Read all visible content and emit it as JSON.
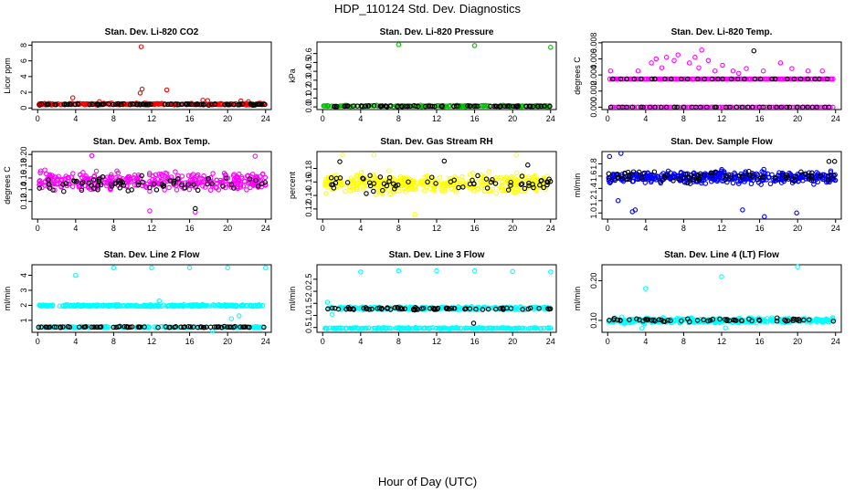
{
  "figure": {
    "title": "HDP_110124  Std. Dev. Diagnostics",
    "xlabel": "Hour of Day (UTC)"
  },
  "chart_data": [
    {
      "type": "scatter",
      "title": "Stan. Dev. Li-820 CO2",
      "ylabel": "Licor ppm",
      "xlim": [
        -0.6,
        24.6
      ],
      "ylim": [
        -0.2,
        8.4
      ],
      "xticks": [
        "0",
        "4",
        "8",
        "12",
        "16",
        "20",
        "24"
      ],
      "yticks": [
        "0",
        "2",
        "4",
        "6",
        "8"
      ],
      "grid": false,
      "series": [
        {
          "color": "#ff0000",
          "band": {
            "center": 0.5,
            "spread": 0.12,
            "n": 260
          },
          "outliers": [
            [
              10.9,
              7.8
            ],
            [
              10.8,
              1.9
            ],
            [
              11.0,
              2.4
            ],
            [
              13.6,
              2.3
            ],
            [
              3.7,
              1.3
            ],
            [
              17.4,
              1.0
            ],
            [
              17.9,
              0.95
            ],
            [
              21.4,
              0.9
            ],
            [
              22.2,
              0.8
            ],
            [
              6.5,
              0.8
            ]
          ]
        },
        {
          "color": "#000000",
          "band": {
            "center": 0.45,
            "spread": 0.1,
            "n": 90
          },
          "outliers": []
        }
      ]
    },
    {
      "type": "scatter",
      "title": "Stan. Dev. Li-820 Pressure",
      "ylabel": "kPa",
      "xlim": [
        -0.6,
        24.6
      ],
      "ylim": [
        -0.03,
        0.73
      ],
      "xticks": [
        "0",
        "4",
        "8",
        "12",
        "16",
        "20",
        "24"
      ],
      "yticks": [
        "0.0",
        "0.1",
        "0.2",
        "0.3",
        "0.4",
        "0.5",
        "0.6"
      ],
      "grid": false,
      "series": [
        {
          "color": "#00c000",
          "band": {
            "center": 0.01,
            "spread": 0.008,
            "n": 200
          },
          "outliers": [
            [
              8.0,
              0.7
            ],
            [
              16.0,
              0.69
            ],
            [
              24.0,
              0.67
            ]
          ]
        },
        {
          "color": "#000000",
          "band": {
            "center": 0.008,
            "spread": 0.006,
            "n": 80
          },
          "outliers": []
        }
      ]
    },
    {
      "type": "scatter",
      "title": "Stan. Dev. Li-820 Temp.",
      "ylabel": "degrees C",
      "xlim": [
        -0.6,
        24.6
      ],
      "ylim": [
        -0.0003,
        0.0081
      ],
      "xticks": [
        "0",
        "4",
        "8",
        "12",
        "16",
        "20",
        "24"
      ],
      "yticks": [
        "0.000",
        "0.002",
        "0.004",
        "0.006",
        "0.008"
      ],
      "grid": false,
      "series": [
        {
          "color": "#ff00ff",
          "levels": [
            0.0,
            0.0035
          ],
          "levelCounts": [
            110,
            170
          ],
          "levelRange": [
            0.2,
            23.8
          ],
          "outliers": [
            [
              0.3,
              0.0045
            ],
            [
              3.2,
              0.0045
            ],
            [
              4.6,
              0.0055
            ],
            [
              5.1,
              0.006
            ],
            [
              6.2,
              0.0062
            ],
            [
              7.0,
              0.0058
            ],
            [
              7.4,
              0.0065
            ],
            [
              8.6,
              0.0055
            ],
            [
              9.2,
              0.0062
            ],
            [
              9.9,
              0.0071
            ],
            [
              10.6,
              0.0058
            ],
            [
              11.3,
              0.0045
            ],
            [
              12.1,
              0.0052
            ],
            [
              13.2,
              0.0045
            ],
            [
              14.6,
              0.0048
            ],
            [
              16.4,
              0.0045
            ],
            [
              18.2,
              0.0055
            ],
            [
              19.4,
              0.0048
            ],
            [
              21.1,
              0.0045
            ],
            [
              22.6,
              0.0045
            ],
            [
              5.7,
              0.0049
            ],
            [
              9.6,
              0.0049
            ],
            [
              13.8,
              0.0042
            ]
          ]
        },
        {
          "color": "#000000",
          "levels": [
            0.0,
            0.0035
          ],
          "levelCounts": [
            40,
            30
          ],
          "levelRange": [
            0.2,
            23.8
          ],
          "outliers": [
            [
              15.4,
              0.007
            ]
          ]
        }
      ]
    },
    {
      "type": "scatter",
      "title": "Stan. Dev. Amb. Box Temp.",
      "ylabel": "degrees C",
      "xlim": [
        -0.6,
        24.6
      ],
      "ylim": [
        0.09,
        0.205
      ],
      "xticks": [
        "0",
        "4",
        "8",
        "12",
        "16",
        "20",
        "24"
      ],
      "yticks": [
        "0.12",
        "0.14",
        "0.16",
        "0.18",
        "0.20"
      ],
      "grid": false,
      "series": [
        {
          "color": "#ff00ff",
          "band": {
            "center": 0.155,
            "spread": 0.018,
            "n": 360
          },
          "outliers": [
            [
              16.6,
              0.102
            ],
            [
              5.7,
              0.198
            ],
            [
              22.9,
              0.197
            ],
            [
              11.8,
              0.104
            ]
          ]
        },
        {
          "color": "#000000",
          "band": {
            "center": 0.15,
            "spread": 0.016,
            "n": 70
          },
          "outliers": [
            [
              16.6,
              0.108
            ]
          ]
        }
      ]
    },
    {
      "type": "scatter",
      "title": "Stan. Dev. Gas Stream RH",
      "ylabel": "percent",
      "xlim": [
        -0.6,
        24.6
      ],
      "ylim": [
        0.105,
        0.205
      ],
      "xticks": [
        "0",
        "4",
        "8",
        "12",
        "16",
        "20",
        "24"
      ],
      "yticks": [
        "0.12",
        "0.14",
        "0.16",
        "0.18"
      ],
      "grid": false,
      "series": [
        {
          "color": "#ffff00",
          "band": {
            "center": 0.158,
            "spread": 0.015,
            "n": 380
          },
          "outliers": [
            [
              9.7,
              0.112
            ],
            [
              2.1,
              0.2
            ],
            [
              5.4,
              0.2
            ],
            [
              20.4,
              0.2
            ]
          ]
        },
        {
          "color": "#000000",
          "band": {
            "center": 0.158,
            "spread": 0.014,
            "n": 65
          },
          "outliers": [
            [
              1.8,
              0.19
            ],
            [
              12.8,
              0.191
            ],
            [
              21.6,
              0.185
            ]
          ]
        }
      ]
    },
    {
      "type": "scatter",
      "title": "Stan. Dev. Sample Flow",
      "ylabel": "ml/min",
      "xlim": [
        -0.6,
        24.6
      ],
      "ylim": [
        0.9,
        2.0
      ],
      "xticks": [
        "0",
        "4",
        "8",
        "12",
        "16",
        "20",
        "24"
      ],
      "yticks": [
        "1.0",
        "1.2",
        "1.4",
        "1.6",
        "1.8"
      ],
      "grid": false,
      "series": [
        {
          "color": "#0000ff",
          "band": {
            "center": 1.58,
            "spread": 0.11,
            "n": 420
          },
          "outliers": [
            [
              1.4,
              1.97
            ],
            [
              2.6,
              1.02
            ],
            [
              2.9,
              1.05
            ],
            [
              16.5,
              0.94
            ],
            [
              19.9,
              1.0
            ],
            [
              1.1,
              1.2
            ],
            [
              0.2,
              1.92
            ],
            [
              14.2,
              1.05
            ]
          ]
        },
        {
          "color": "#000000",
          "band": {
            "center": 1.6,
            "spread": 0.1,
            "n": 70
          },
          "outliers": [
            [
              23.3,
              1.84
            ],
            [
              23.9,
              1.84
            ]
          ]
        }
      ]
    },
    {
      "type": "scatter",
      "title": "Stan. Dev. Line 2 Flow",
      "ylabel": "ml/min",
      "xlim": [
        -0.6,
        24.6
      ],
      "ylim": [
        0.2,
        4.7
      ],
      "xticks": [
        "0",
        "4",
        "8",
        "12",
        "16",
        "20",
        "24"
      ],
      "yticks": [
        "1",
        "2",
        "3",
        "4"
      ],
      "grid": false,
      "series": [
        {
          "color": "#00ffff",
          "band": {
            "center": 1.98,
            "spread": 0.07,
            "n": 300
          },
          "extraBand": {
            "center": 0.55,
            "spread": 0.05,
            "n": 200
          },
          "outliers": [
            [
              4.0,
              4.0
            ],
            [
              8.0,
              4.5
            ],
            [
              12.0,
              4.5
            ],
            [
              16.0,
              4.5
            ],
            [
              20.0,
              4.5
            ],
            [
              24.0,
              4.5
            ],
            [
              20.4,
              1.1
            ],
            [
              21.2,
              1.3
            ],
            [
              18.4,
              0.3
            ],
            [
              12.8,
              2.3
            ]
          ]
        },
        {
          "color": "#000000",
          "band": {
            "center": 0.55,
            "spread": 0.04,
            "n": 80
          },
          "outliers": []
        }
      ]
    },
    {
      "type": "scatter",
      "title": "Stan. Dev. Line 3 Flow",
      "ylabel": "ml/min",
      "xlim": [
        -0.6,
        24.6
      ],
      "ylim": [
        0.3,
        3.1
      ],
      "xticks": [
        "0",
        "4",
        "8",
        "12",
        "16",
        "20",
        "24"
      ],
      "yticks": [
        "0.5",
        "1.0",
        "1.5",
        "2.0",
        "2.5"
      ],
      "grid": false,
      "series": [
        {
          "color": "#00ffff",
          "band": {
            "center": 1.3,
            "spread": 0.07,
            "n": 250
          },
          "extraBand": {
            "center": 0.47,
            "spread": 0.03,
            "n": 220
          },
          "outliers": [
            [
              4.0,
              2.8
            ],
            [
              8.0,
              2.85
            ],
            [
              12.0,
              2.85
            ],
            [
              16.0,
              2.85
            ],
            [
              20.0,
              2.82
            ],
            [
              24.0,
              2.8
            ],
            [
              0.5,
              1.55
            ],
            [
              1.0,
              1.05
            ]
          ]
        },
        {
          "color": "#000000",
          "band": {
            "center": 1.28,
            "spread": 0.06,
            "n": 75
          },
          "outliers": [
            [
              15.9,
              0.68
            ]
          ]
        }
      ]
    },
    {
      "type": "scatter",
      "title": "Stan. Dev. Line 4 (LT) Flow",
      "ylabel": "ml/min",
      "xlim": [
        -0.6,
        24.6
      ],
      "ylim": [
        0.07,
        0.24
      ],
      "xticks": [
        "0",
        "4",
        "8",
        "12",
        "16",
        "20",
        "24"
      ],
      "yticks": [
        "0.10",
        "0.20"
      ],
      "grid": false,
      "series": [
        {
          "color": "#00ffff",
          "band": {
            "center": 0.1,
            "spread": 0.007,
            "n": 380
          },
          "outliers": [
            [
              4.0,
              0.18
            ],
            [
              12.0,
              0.21
            ],
            [
              20.0,
              0.235
            ],
            [
              3.6,
              0.08
            ],
            [
              12.4,
              0.081
            ]
          ]
        },
        {
          "color": "#000000",
          "band": {
            "center": 0.1,
            "spread": 0.005,
            "n": 60
          },
          "outliers": []
        }
      ]
    }
  ]
}
